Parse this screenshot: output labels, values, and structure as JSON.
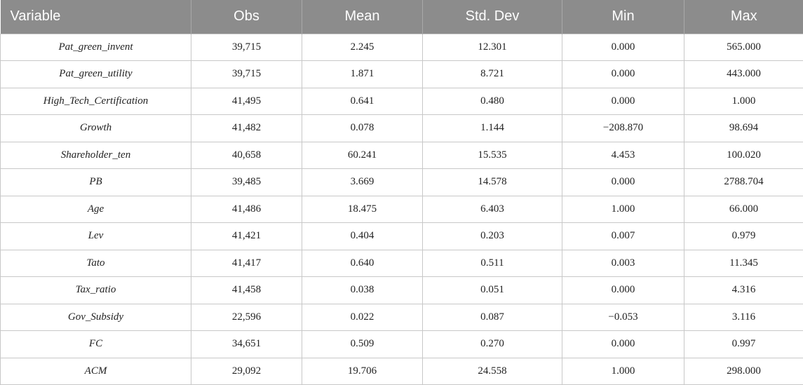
{
  "table": {
    "headers": [
      "Variable",
      "Obs",
      "Mean",
      "Std. Dev",
      "Min",
      "Max"
    ],
    "rows": [
      [
        "Pat_green_invent",
        "39,715",
        "2.245",
        "12.301",
        "0.000",
        "565.000"
      ],
      [
        "Pat_green_utility",
        "39,715",
        "1.871",
        "8.721",
        "0.000",
        "443.000"
      ],
      [
        "High_Tech_Certification",
        "41,495",
        "0.641",
        "0.480",
        "0.000",
        "1.000"
      ],
      [
        "Growth",
        "41,482",
        "0.078",
        "1.144",
        "−208.870",
        "98.694"
      ],
      [
        "Shareholder_ten",
        "40,658",
        "60.241",
        "15.535",
        "4.453",
        "100.020"
      ],
      [
        "PB",
        "39,485",
        "3.669",
        "14.578",
        "0.000",
        "2788.704"
      ],
      [
        "Age",
        "41,486",
        "18.475",
        "6.403",
        "1.000",
        "66.000"
      ],
      [
        "Lev",
        "41,421",
        "0.404",
        "0.203",
        "0.007",
        "0.979"
      ],
      [
        "Tato",
        "41,417",
        "0.640",
        "0.511",
        "0.003",
        "11.345"
      ],
      [
        "Tax_ratio",
        "41,458",
        "0.038",
        "0.051",
        "0.000",
        "4.316"
      ],
      [
        "Gov_Subsidy",
        "22,596",
        "0.022",
        "0.087",
        "−0.053",
        "3.116"
      ],
      [
        "FC",
        "34,651",
        "0.509",
        "0.270",
        "0.000",
        "0.997"
      ],
      [
        "ACM",
        "29,092",
        "19.706",
        "24.558",
        "1.000",
        "298.000"
      ]
    ]
  },
  "colors": {
    "header_bg": "#8c8c8c",
    "header_text": "#ffffff",
    "grid": "#c8c8c8"
  }
}
